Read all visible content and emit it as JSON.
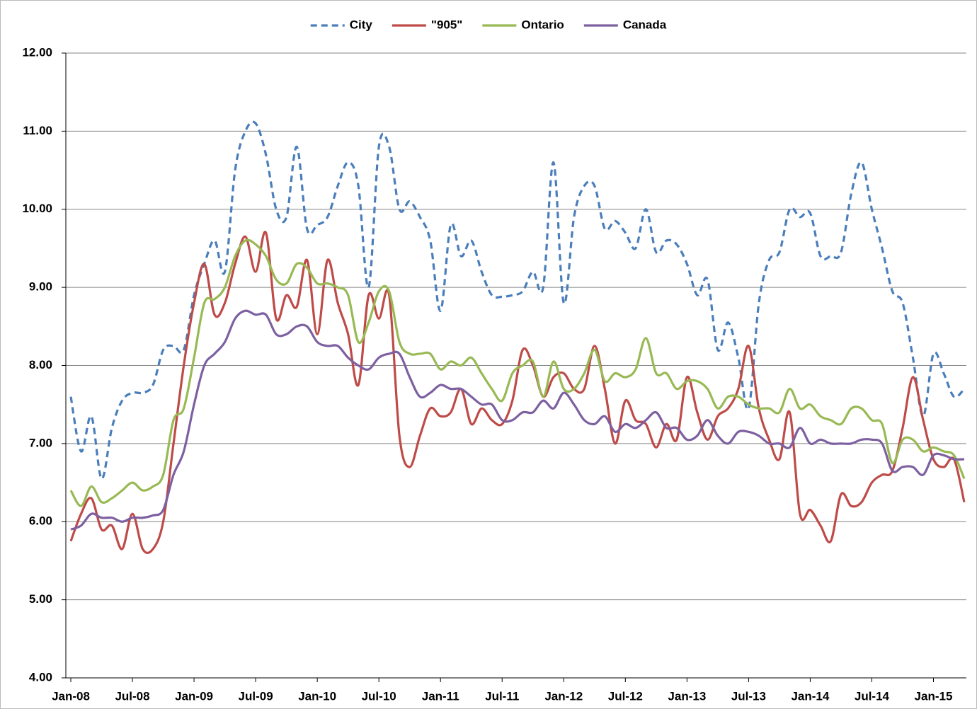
{
  "chart_data": {
    "type": "line",
    "categories": [
      "Jan-08",
      null,
      null,
      null,
      null,
      null,
      "Jul-08",
      null,
      null,
      null,
      null,
      null,
      "Jan-09",
      null,
      null,
      null,
      null,
      null,
      "Jul-09",
      null,
      null,
      null,
      null,
      null,
      "Jan-10",
      null,
      null,
      null,
      null,
      null,
      "Jul-10",
      null,
      null,
      null,
      null,
      null,
      "Jan-11",
      null,
      null,
      null,
      null,
      null,
      "Jul-11",
      null,
      null,
      null,
      null,
      null,
      "Jan-12",
      null,
      null,
      null,
      null,
      null,
      "Jul-12",
      null,
      null,
      null,
      null,
      null,
      "Jan-13",
      null,
      null,
      null,
      null,
      null,
      "Jul-13",
      null,
      null,
      null,
      null,
      null,
      "Jan-14",
      null,
      null,
      null,
      null,
      null,
      "Jul-14",
      null,
      null,
      null,
      null,
      null,
      "Jan-15",
      null,
      null,
      null
    ],
    "series": [
      {
        "name": "City",
        "color": "#4a7ebb",
        "dashed": true,
        "values": [
          7.6,
          6.9,
          7.35,
          6.55,
          7.2,
          7.55,
          7.65,
          7.65,
          7.75,
          8.2,
          8.25,
          8.2,
          8.9,
          9.3,
          9.6,
          9.2,
          10.5,
          11.0,
          11.1,
          10.7,
          10.0,
          9.9,
          10.8,
          9.75,
          9.8,
          9.9,
          10.3,
          10.6,
          10.3,
          9.0,
          10.8,
          10.8,
          10.0,
          10.1,
          9.9,
          9.6,
          8.7,
          9.8,
          9.4,
          9.6,
          9.2,
          8.9,
          8.88,
          8.9,
          8.95,
          9.2,
          9.0,
          10.6,
          8.8,
          9.9,
          10.3,
          10.3,
          9.75,
          9.85,
          9.7,
          9.5,
          10.0,
          9.45,
          9.6,
          9.55,
          9.3,
          8.9,
          9.1,
          8.2,
          8.55,
          8.1,
          7.45,
          8.8,
          9.35,
          9.45,
          10.0,
          9.9,
          9.95,
          9.4,
          9.4,
          9.45,
          10.2,
          10.6,
          10.0,
          9.5,
          8.95,
          8.8,
          8.1,
          7.35,
          8.15,
          7.9,
          7.6,
          7.7
        ]
      },
      {
        "name": "\"905\"",
        "color": "#be4b48",
        "dashed": false,
        "values": [
          5.75,
          6.1,
          6.3,
          5.9,
          5.95,
          5.65,
          6.1,
          5.65,
          5.65,
          6.0,
          7.0,
          8.0,
          8.8,
          9.3,
          8.65,
          8.8,
          9.3,
          9.65,
          9.2,
          9.7,
          8.6,
          8.9,
          8.75,
          9.35,
          8.4,
          9.35,
          8.8,
          8.4,
          7.75,
          8.9,
          8.6,
          8.9,
          7.1,
          6.7,
          7.1,
          7.45,
          7.35,
          7.4,
          7.7,
          7.25,
          7.45,
          7.3,
          7.25,
          7.55,
          8.2,
          8.0,
          7.6,
          7.85,
          7.9,
          7.7,
          7.7,
          8.25,
          7.7,
          7.0,
          7.55,
          7.3,
          7.25,
          6.95,
          7.25,
          7.05,
          7.85,
          7.4,
          7.05,
          7.35,
          7.45,
          7.7,
          8.25,
          7.45,
          7.05,
          6.8,
          7.4,
          6.1,
          6.15,
          5.95,
          5.75,
          6.35,
          6.2,
          6.25,
          6.5,
          6.6,
          6.65,
          7.2,
          7.85,
          7.3,
          6.8,
          6.7,
          6.8,
          6.25
        ]
      },
      {
        "name": "Ontario",
        "color": "#98b954",
        "dashed": false,
        "values": [
          6.4,
          6.2,
          6.45,
          6.25,
          6.3,
          6.4,
          6.5,
          6.4,
          6.45,
          6.6,
          7.3,
          7.45,
          8.1,
          8.8,
          8.85,
          9.0,
          9.4,
          9.6,
          9.55,
          9.4,
          9.1,
          9.05,
          9.3,
          9.25,
          9.05,
          9.05,
          9.0,
          8.9,
          8.3,
          8.55,
          8.95,
          8.95,
          8.3,
          8.15,
          8.15,
          8.15,
          7.95,
          8.05,
          8.0,
          8.1,
          7.9,
          7.7,
          7.55,
          7.9,
          8.0,
          8.05,
          7.6,
          8.05,
          7.7,
          7.7,
          7.9,
          8.2,
          7.8,
          7.9,
          7.85,
          7.95,
          8.35,
          7.9,
          7.9,
          7.7,
          7.8,
          7.8,
          7.7,
          7.45,
          7.6,
          7.6,
          7.5,
          7.45,
          7.45,
          7.4,
          7.7,
          7.45,
          7.5,
          7.35,
          7.3,
          7.25,
          7.45,
          7.45,
          7.3,
          7.25,
          6.75,
          7.05,
          7.05,
          6.9,
          6.95,
          6.9,
          6.85,
          6.55
        ]
      },
      {
        "name": "Canada",
        "color": "#7d60a0",
        "dashed": false,
        "values": [
          5.9,
          5.95,
          6.1,
          6.05,
          6.05,
          6.0,
          6.05,
          6.05,
          6.08,
          6.15,
          6.6,
          6.9,
          7.5,
          8.0,
          8.15,
          8.3,
          8.6,
          8.7,
          8.65,
          8.65,
          8.4,
          8.4,
          8.5,
          8.5,
          8.3,
          8.25,
          8.25,
          8.1,
          8.0,
          7.95,
          8.1,
          8.15,
          8.15,
          7.85,
          7.6,
          7.65,
          7.75,
          7.7,
          7.7,
          7.6,
          7.5,
          7.5,
          7.3,
          7.3,
          7.4,
          7.4,
          7.55,
          7.45,
          7.65,
          7.5,
          7.3,
          7.25,
          7.35,
          7.15,
          7.25,
          7.2,
          7.3,
          7.4,
          7.2,
          7.2,
          7.05,
          7.1,
          7.3,
          7.1,
          7.0,
          7.15,
          7.15,
          7.1,
          7.0,
          7.0,
          6.95,
          7.2,
          7.0,
          7.05,
          7.0,
          7.0,
          7.0,
          7.05,
          7.05,
          7.0,
          6.65,
          6.7,
          6.7,
          6.6,
          6.85,
          6.85,
          6.8,
          6.8
        ]
      }
    ],
    "ylim": [
      4,
      12
    ],
    "yticks": [
      {
        "value": 4,
        "label": "4.00"
      },
      {
        "value": 5,
        "label": "5.00"
      },
      {
        "value": 6,
        "label": "6.00"
      },
      {
        "value": 7,
        "label": "7.00"
      },
      {
        "value": 8,
        "label": "8.00"
      },
      {
        "value": 9,
        "label": "9.00"
      },
      {
        "value": 10,
        "label": "10.00"
      },
      {
        "value": 11,
        "label": "11.00"
      },
      {
        "value": 12,
        "label": "12.00"
      }
    ],
    "grid": true,
    "legend": "top"
  }
}
